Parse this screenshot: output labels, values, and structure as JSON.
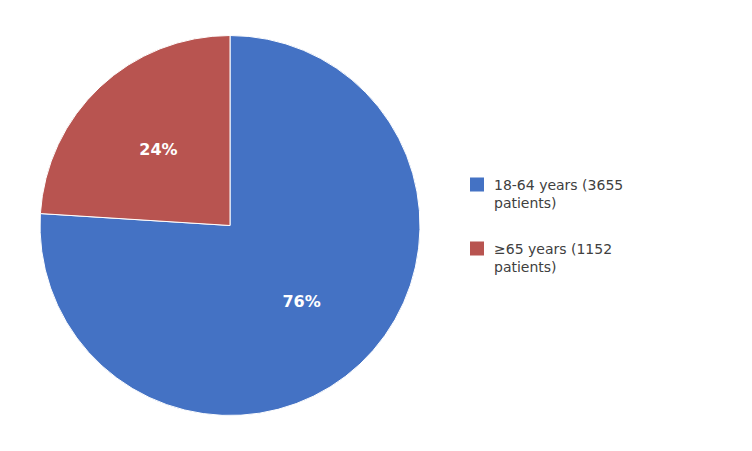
{
  "chart_data": {
    "type": "pie",
    "categories": [
      "18-64 years (3655\npatients)",
      "≥65 years (1152\npatients)"
    ],
    "values": [
      76,
      24
    ],
    "value_labels": [
      "76%",
      "24%"
    ],
    "colors": [
      "#4472C4",
      "#B85450"
    ],
    "data_labels": true,
    "legend": "right"
  }
}
